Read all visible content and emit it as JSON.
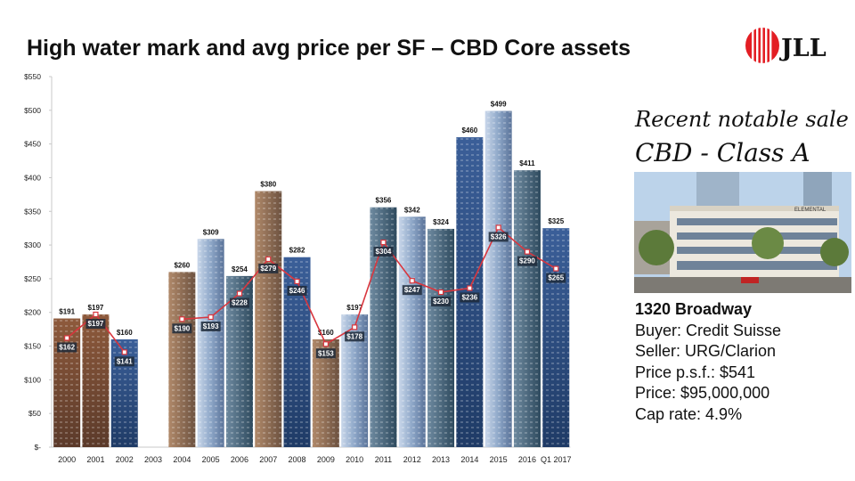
{
  "title": "High water mark and avg price per SF – CBD Core assets",
  "logo": {
    "text": "JLL",
    "brand_color": "#e31e24"
  },
  "chart_data": {
    "type": "bar+line",
    "categories": [
      "2000",
      "2001",
      "2002",
      "2003",
      "2004",
      "2005",
      "2006",
      "2007",
      "2008",
      "2009",
      "2010",
      "2011",
      "2012",
      "2013",
      "2014",
      "2015",
      "2016",
      "Q1 2017"
    ],
    "series": [
      {
        "values": [
          191,
          197,
          160,
          null,
          260,
          309,
          254,
          380,
          282,
          160,
          197,
          356,
          342,
          324,
          460,
          499,
          411,
          325
        ],
        "labels": [
          "$191",
          "$197",
          "$160",
          "",
          "$260",
          "$309",
          "$254",
          "$380",
          "$282",
          "$160",
          "$197",
          "$356",
          "$342",
          "$324",
          "$460",
          "$499",
          "$411",
          "$325"
        ]
      },
      {
        "values": [
          162,
          197,
          141,
          null,
          190,
          193,
          228,
          279,
          246,
          153,
          178,
          304,
          247,
          230,
          236,
          326,
          290,
          265
        ],
        "labels": [
          "$162",
          "$197",
          "$141",
          "",
          "$190",
          "$193",
          "$228",
          "$279",
          "$246",
          "$153",
          "$178",
          "$304",
          "$247",
          "$230",
          "$236",
          "$326",
          "$290",
          "$265"
        ]
      }
    ],
    "ylim": [
      0,
      550
    ],
    "yticks": [
      550,
      500,
      450,
      400,
      350,
      300,
      250,
      200,
      150,
      100,
      50,
      0
    ],
    "ytick_labels": [
      "$550",
      "$500",
      "$450",
      "$400",
      "$350",
      "$300",
      "$250",
      "$200",
      "$150",
      "$100",
      "$50",
      "$-"
    ],
    "grid": false,
    "line_color": "#d9363e"
  },
  "sale": {
    "heading1": "Recent notable sale",
    "heading2": "CBD - Class A",
    "building_sign": "ELEMENTAL",
    "name": "1320 Broadway",
    "buyer": "Buyer: Credit Suisse",
    "seller": "Seller: URG/Clarion",
    "price_psf": "Price p.s.f.: $541",
    "price": "Price: $95,000,000",
    "cap_rate": "Cap rate: 4.9%"
  }
}
